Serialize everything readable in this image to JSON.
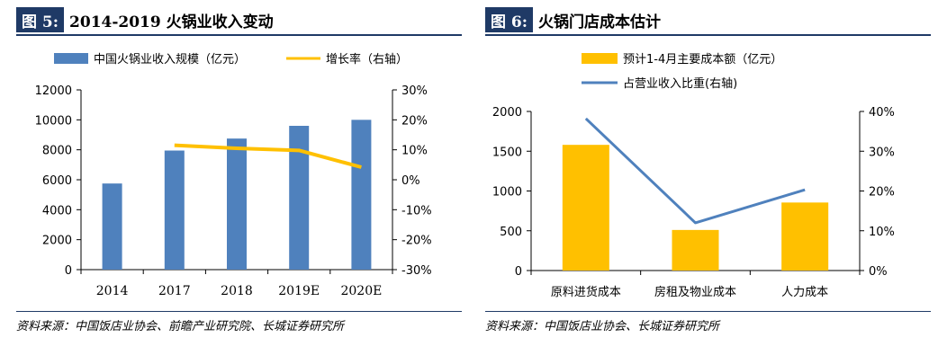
{
  "left": {
    "tag": "图 5:",
    "title": "2014-2019 火锅业收入变动",
    "source": "资料来源：中国饭店业协会、前瞻产业研究院、长城证券研究所",
    "chart_data": {
      "type": "bar",
      "categories": [
        "2014",
        "2017",
        "2018",
        "2019E",
        "2020E"
      ],
      "series": [
        {
          "name": "中国火锅业收入规模（亿元）",
          "kind": "bar",
          "axis": "left",
          "color": "#4f81bd",
          "values": [
            5750,
            7950,
            8750,
            9600,
            10000
          ]
        },
        {
          "name": "增长率（右轴）",
          "kind": "line",
          "axis": "right",
          "color": "#ffc000",
          "values": [
            null,
            11.5,
            10.5,
            9.8,
            4.2
          ]
        }
      ],
      "yleft": {
        "min": 0,
        "max": 12000,
        "ticks": [
          0,
          2000,
          4000,
          6000,
          8000,
          10000,
          12000
        ]
      },
      "yright": {
        "min": -30,
        "max": 30,
        "ticks": [
          -30,
          -20,
          -10,
          0,
          10,
          20,
          30
        ],
        "tick_labels": [
          "-30%",
          "-20%",
          "-10%",
          "0%",
          "10%",
          "20%",
          "30%"
        ]
      },
      "legend": "top",
      "grid": false
    }
  },
  "right": {
    "tag": "图 6:",
    "title": "火锅门店成本估计",
    "source": "资料来源：中国饭店业协会、长城证券研究所",
    "chart_data": {
      "type": "bar",
      "categories": [
        "原料进货成本",
        "房租及物业成本",
        "人力成本"
      ],
      "series": [
        {
          "name": "预计1-4月主要成本额（亿元）",
          "kind": "bar",
          "axis": "left",
          "color": "#ffc000",
          "values": [
            1580,
            510,
            855
          ]
        },
        {
          "name": "占营业收入比重(右轴)",
          "kind": "line",
          "axis": "right",
          "color": "#4f81bd",
          "values": [
            38.2,
            12.0,
            20.3
          ]
        }
      ],
      "yleft": {
        "min": 0,
        "max": 2000,
        "ticks": [
          0,
          500,
          1000,
          1500,
          2000
        ]
      },
      "yright": {
        "min": 0,
        "max": 40,
        "ticks": [
          0,
          10,
          20,
          30,
          40
        ],
        "tick_labels": [
          "0%",
          "10%",
          "20%",
          "30%",
          "40%"
        ]
      },
      "legend": "top",
      "grid": false
    }
  }
}
